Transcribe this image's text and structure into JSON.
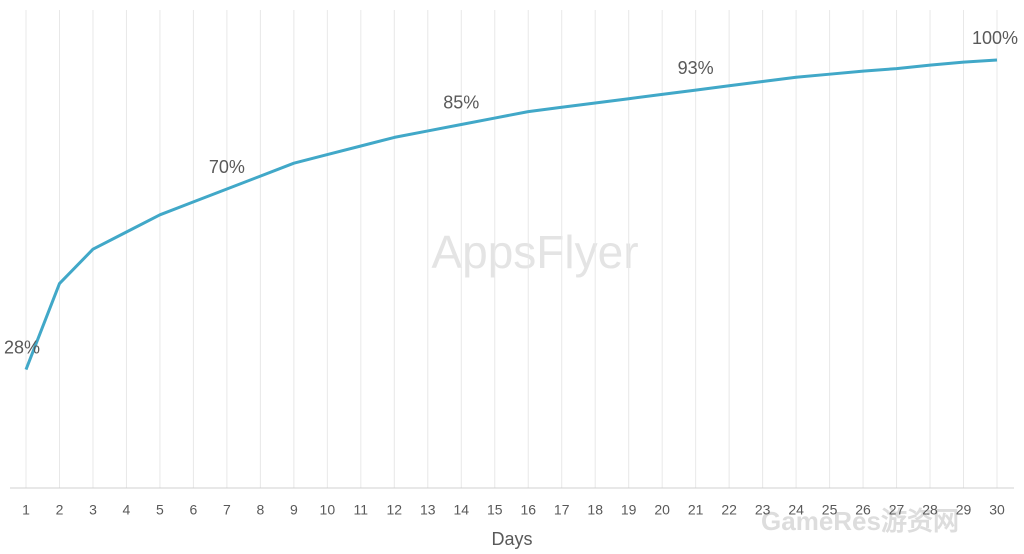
{
  "chart_data": {
    "type": "line",
    "x_label": "Days",
    "categories": [
      "1",
      "2",
      "3",
      "4",
      "5",
      "6",
      "7",
      "8",
      "9",
      "10",
      "11",
      "12",
      "13",
      "14",
      "15",
      "16",
      "17",
      "18",
      "19",
      "20",
      "21",
      "22",
      "23",
      "24",
      "25",
      "26",
      "27",
      "28",
      "29",
      "30"
    ],
    "values": [
      28,
      48,
      56,
      60,
      64,
      67,
      70,
      73,
      76,
      78,
      80,
      82,
      83.5,
      85,
      86.5,
      88,
      89,
      90,
      91,
      92,
      93,
      94,
      95,
      96,
      96.7,
      97.4,
      98,
      98.8,
      99.5,
      100
    ],
    "value_labels": [
      "28%",
      null,
      null,
      null,
      null,
      null,
      "70%",
      null,
      null,
      null,
      null,
      null,
      null,
      "85%",
      null,
      null,
      null,
      null,
      null,
      null,
      "93%",
      null,
      null,
      null,
      null,
      null,
      null,
      null,
      null,
      "100%"
    ],
    "color": "#41a8c8",
    "ylim": [
      0,
      100
    ],
    "grid": true,
    "watermarks": [
      "AppsFlyer",
      "GameRes游资网"
    ]
  }
}
